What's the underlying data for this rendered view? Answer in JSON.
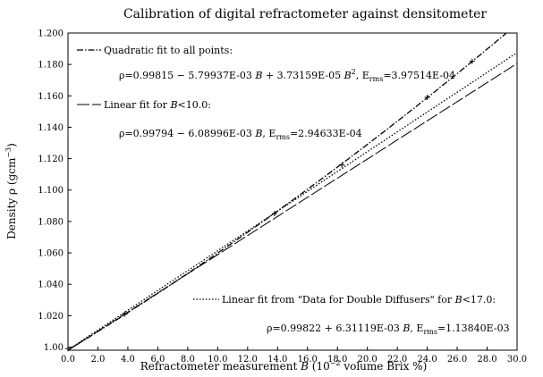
{
  "chart_data": {
    "type": "line",
    "title": "Calibration of digital refractometer against densitometer",
    "xlabel": "Refractometer measurement B (10^-2 volume Brix %)",
    "ylabel": "Density ρ (gcm^-3)",
    "xlim": [
      0,
      30
    ],
    "ylim": [
      0.998,
      1.2
    ],
    "grid": false,
    "xticks": [
      "0.0",
      "2.0",
      "4.0",
      "6.0",
      "8.0",
      "10.0",
      "12.0",
      "14.0",
      "16.0",
      "18.0",
      "20.0",
      "22.0",
      "24.0",
      "26.0",
      "28.0",
      "30.0"
    ],
    "xtick_values": [
      0,
      2,
      4,
      6,
      8,
      10,
      12,
      14,
      16,
      18,
      20,
      22,
      24,
      26,
      28,
      30
    ],
    "yticks": [
      "1.00",
      "1.020",
      "1.040",
      "1.060",
      "1.080",
      "1.100",
      "1.120",
      "1.140",
      "1.160",
      "1.180",
      "1.200"
    ],
    "ytick_values": [
      1.0,
      1.02,
      1.04,
      1.06,
      1.08,
      1.1,
      1.12,
      1.14,
      1.16,
      1.18,
      1.2
    ],
    "series": [
      {
        "legend": "Quadratic fit to all points:",
        "equation": "ρ=0.99815 − 5.79937E-03 B + 3.73159E-05 B², E_rms=3.97514E-04",
        "style": "dash-dot",
        "coefficients": [
          0.99815,
          0.00579937,
          3.73159e-05
        ],
        "x_range": [
          0,
          30
        ]
      },
      {
        "legend": "Linear fit for B<10.0:",
        "equation": "ρ=0.99794 − 6.08996E-03 B, E_rms=2.94633E-04",
        "style": "long-dash",
        "coefficients": [
          0.99794,
          0.00608996,
          0
        ],
        "x_range": [
          0,
          30
        ]
      },
      {
        "legend": "Linear fit from \"Data for Double Diffusers\" for B<17.0:",
        "equation": "ρ=0.99822 + 6.31119E-03 B, E_rms=1.13840E-03",
        "style": "dotted",
        "coefficients": [
          0.99822,
          0.00631119,
          0
        ],
        "x_range": [
          0,
          30
        ]
      }
    ],
    "points": [
      {
        "x": 0.0,
        "y": 0.999
      },
      {
        "x": 3.8,
        "y": 1.021
      },
      {
        "x": 13.8,
        "y": 1.085
      },
      {
        "x": 18.3,
        "y": 1.116
      },
      {
        "x": 24.0,
        "y": 1.159
      },
      {
        "x": 27.0,
        "y": 1.182
      }
    ]
  },
  "labels": {
    "title": "Calibration of digital refractometer against densitometer",
    "xlabel_main": "Refractometer measurement ",
    "xlabel_var": "B",
    "xlabel_unit_open": " (10",
    "xlabel_exp": "−2",
    "xlabel_unit_close": " volume Brix %)",
    "ylabel_main": "Density ρ (gcm",
    "ylabel_exp": "−3",
    "ylabel_close": ")",
    "quad_legend": "Quadratic fit to all points:",
    "quad_eq_a": "ρ=0.99815 − 5.79937E-03 ",
    "quad_eq_var1": "B",
    "quad_eq_b": " + 3.73159E-05 ",
    "quad_eq_var2": "B",
    "quad_eq_exp": "2",
    "quad_eq_c": ",   E",
    "quad_eq_sub": "rms",
    "quad_eq_d": "=3.97514E-04",
    "lin_legend_a": "Linear fit for ",
    "lin_legend_var": "B",
    "lin_legend_b": "<10.0:",
    "lin_eq_a": "ρ=0.99794 − 6.08996E-03 ",
    "lin_eq_var": "B",
    "lin_eq_c": ",   E",
    "lin_eq_sub": "rms",
    "lin_eq_d": "=2.94633E-04",
    "dd_legend_a": "Linear fit from \"Data for Double Diffusers\" for ",
    "dd_legend_var": "B",
    "dd_legend_b": "<17.0:",
    "dd_eq_a": "ρ=0.99822 + 6.31119E-03 ",
    "dd_eq_var": "B",
    "dd_eq_c": ",   E",
    "dd_eq_sub": "rms",
    "dd_eq_d": "=1.13840E-03"
  }
}
